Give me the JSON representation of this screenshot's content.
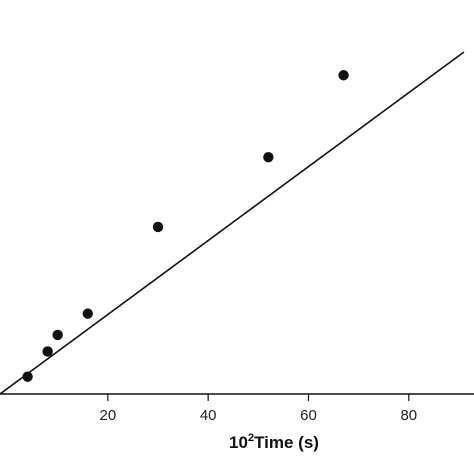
{
  "chart_data": {
    "type": "scatter",
    "title": "",
    "xlabel": {
      "base": "10",
      "exponent": "2",
      "text": "Time (s)"
    },
    "ylabel": "",
    "xlim": [
      -1.5,
      93
    ],
    "ylim": [
      0,
      1
    ],
    "grid": false,
    "x_ticks": [
      20,
      40,
      60,
      80
    ],
    "x_tick_labels": [
      "20",
      "40",
      "60",
      "80"
    ],
    "series": [
      {
        "points": [
          {
            "x": 4,
            "y": 0.044
          },
          {
            "x": 8,
            "y": 0.108
          },
          {
            "x": 10,
            "y": 0.15
          },
          {
            "x": 16,
            "y": 0.204
          },
          {
            "x": 30,
            "y": 0.424
          },
          {
            "x": 52,
            "y": 0.601
          },
          {
            "x": 67,
            "y": 0.809
          }
        ],
        "color": "#111111",
        "marker": "filled-circle"
      }
    ],
    "fit_line": {
      "x": [
        -1.5,
        91
      ],
      "y": [
        0,
        0.868
      ],
      "color": "#111111"
    }
  }
}
